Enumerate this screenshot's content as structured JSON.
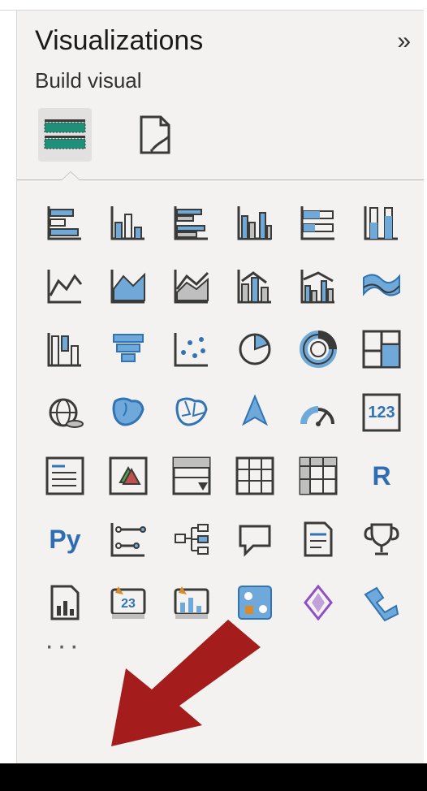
{
  "panel": {
    "title": "Visualizations",
    "collapse_glyph": "»",
    "subtitle": "Build visual",
    "more_glyph": "···"
  },
  "tabs": {
    "build_selected": true
  },
  "colors": {
    "stroke": "#3a3a38",
    "blue_fill": "#6ea9d9",
    "blue_stroke": "#3173b4",
    "teal": "#1f8f7a",
    "grey_fill": "#bfbfbf",
    "r_blue": "#2f6db3",
    "py_blue": "#2f6db3",
    "orange": "#d88b2d",
    "purple": "#8f4fc2",
    "arrow_red": "#a51c1c"
  },
  "viz": [
    {
      "name": "stacked-bar-chart-icon"
    },
    {
      "name": "stacked-column-chart-icon"
    },
    {
      "name": "clustered-bar-chart-icon"
    },
    {
      "name": "clustered-column-chart-icon"
    },
    {
      "name": "hundred-percent-bar-chart-icon"
    },
    {
      "name": "hundred-percent-column-chart-icon"
    },
    {
      "name": "line-chart-icon"
    },
    {
      "name": "area-chart-icon"
    },
    {
      "name": "stacked-area-chart-icon"
    },
    {
      "name": "line-stacked-column-chart-icon"
    },
    {
      "name": "line-clustered-column-chart-icon"
    },
    {
      "name": "ribbon-chart-icon"
    },
    {
      "name": "waterfall-chart-icon"
    },
    {
      "name": "funnel-chart-icon"
    },
    {
      "name": "scatter-chart-icon"
    },
    {
      "name": "pie-chart-icon"
    },
    {
      "name": "donut-chart-icon"
    },
    {
      "name": "treemap-chart-icon"
    },
    {
      "name": "map-icon"
    },
    {
      "name": "filled-map-icon"
    },
    {
      "name": "shape-map-icon"
    },
    {
      "name": "azure-map-icon"
    },
    {
      "name": "gauge-chart-icon"
    },
    {
      "name": "card-icon",
      "text": "123"
    },
    {
      "name": "multi-row-card-icon"
    },
    {
      "name": "kpi-icon"
    },
    {
      "name": "slicer-icon"
    },
    {
      "name": "table-icon"
    },
    {
      "name": "matrix-icon"
    },
    {
      "name": "r-visual-icon",
      "text": "R"
    },
    {
      "name": "python-visual-icon",
      "text": "Py"
    },
    {
      "name": "key-influencers-icon"
    },
    {
      "name": "decomposition-tree-icon"
    },
    {
      "name": "qna-icon"
    },
    {
      "name": "smart-narrative-icon"
    },
    {
      "name": "goals-icon"
    },
    {
      "name": "paginated-report-icon"
    },
    {
      "name": "power-automate-icon"
    },
    {
      "name": "power-automate-alt-icon"
    },
    {
      "name": "app-source-icon"
    },
    {
      "name": "power-apps-icon"
    },
    {
      "name": "get-more-visuals-icon"
    }
  ]
}
